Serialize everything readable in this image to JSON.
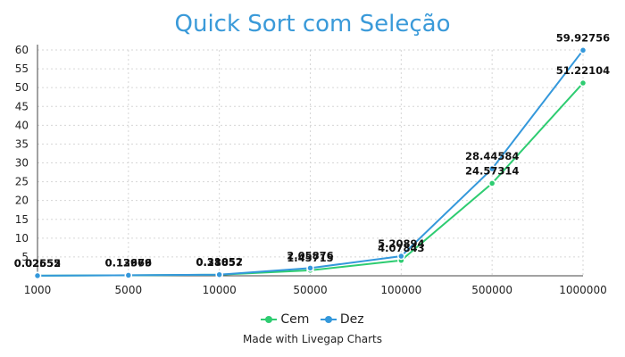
{
  "chart_data": {
    "type": "line",
    "title": "Quick Sort com Seleção",
    "xlabel": "",
    "ylabel": "",
    "categories": [
      "1000",
      "5000",
      "10000",
      "50000",
      "100000",
      "500000",
      "1000000"
    ],
    "ylim": [
      0,
      60
    ],
    "yticks": [
      5,
      10,
      15,
      20,
      25,
      30,
      35,
      40,
      45,
      50,
      55,
      60
    ],
    "grid": true,
    "legend_position": "bottom",
    "series": [
      {
        "name": "Cem",
        "color": "#2ecc71",
        "values": [
          0.02555,
          0.12969,
          0.28857,
          1.45715,
          4.07843,
          24.57314,
          51.22104
        ],
        "labels": [
          "0.02555",
          "0.12969",
          "0.28857",
          "1.45715",
          "4.07843",
          "24.57314",
          "51.22104"
        ]
      },
      {
        "name": "Dez",
        "color": "#3498db",
        "values": [
          0.02652,
          0.13676,
          0.31052,
          2.05876,
          5.20894,
          28.44584,
          59.92756
        ],
        "labels": [
          "0.02652",
          "0.13676",
          "0.31052",
          "2.05876",
          "5.20894",
          "28.44584",
          "59.92756"
        ]
      }
    ]
  },
  "credit": "Made with Livegap Charts"
}
